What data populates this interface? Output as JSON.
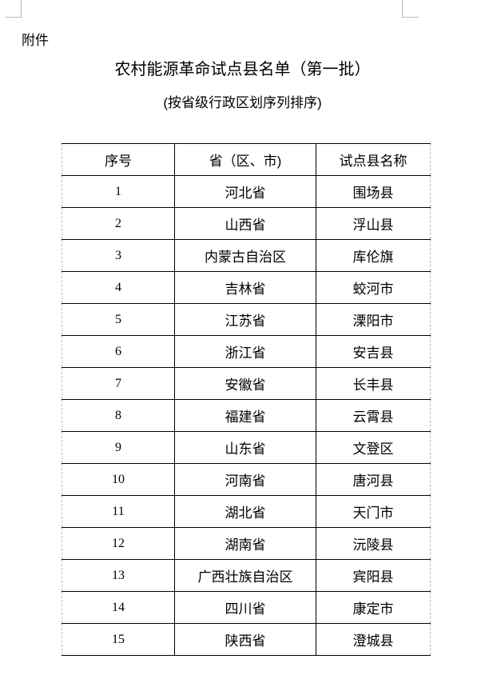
{
  "attachment_label": "附件",
  "title": "农村能源革命试点县名单（第一批）",
  "subtitle": "(按省级行政区划序列排序)",
  "table": {
    "headers": [
      "序号",
      "省（区、市)",
      "试点县名称"
    ],
    "rows": [
      [
        "1",
        "河北省",
        "围场县"
      ],
      [
        "2",
        "山西省",
        "浮山县"
      ],
      [
        "3",
        "内蒙古自治区",
        "库伦旗"
      ],
      [
        "4",
        "吉林省",
        "蛟河市"
      ],
      [
        "5",
        "江苏省",
        "溧阳市"
      ],
      [
        "6",
        "浙江省",
        "安吉县"
      ],
      [
        "7",
        "安徽省",
        "长丰县"
      ],
      [
        "8",
        "福建省",
        "云霄县"
      ],
      [
        "9",
        "山东省",
        "文登区"
      ],
      [
        "10",
        "河南省",
        "唐河县"
      ],
      [
        "11",
        "湖北省",
        "天门市"
      ],
      [
        "12",
        "湖南省",
        "沅陵县"
      ],
      [
        "13",
        "广西壮族自治区",
        "宾阳县"
      ],
      [
        "14",
        "四川省",
        "康定市"
      ],
      [
        "15",
        "陕西省",
        "澄城县"
      ]
    ]
  }
}
